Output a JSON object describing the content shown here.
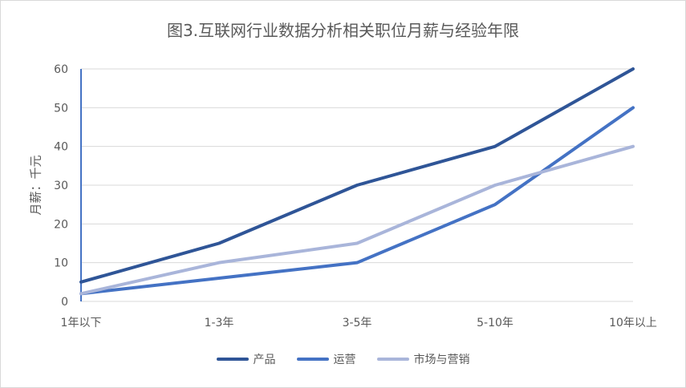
{
  "chart_data": {
    "type": "line",
    "title": "图3.互联网行业数据分析相关职位月薪与经验年限",
    "xlabel": "",
    "ylabel": "月薪：千元",
    "categories": [
      "1年以下",
      "1-3年",
      "3-5年",
      "5-10年",
      "10年以上"
    ],
    "ylim": [
      0,
      60
    ],
    "yticks": [
      0,
      10,
      20,
      30,
      40,
      50,
      60
    ],
    "grid": true,
    "legend": "bottom",
    "series": [
      {
        "name": "产品",
        "color": "#2F5597",
        "values": [
          5,
          15,
          30,
          40,
          60
        ]
      },
      {
        "name": "运营",
        "color": "#4472C4",
        "values": [
          2,
          6,
          10,
          25,
          50
        ]
      },
      {
        "name": "市场与营销",
        "color": "#A9B5DA",
        "values": [
          2,
          10,
          15,
          30,
          40
        ]
      }
    ]
  }
}
